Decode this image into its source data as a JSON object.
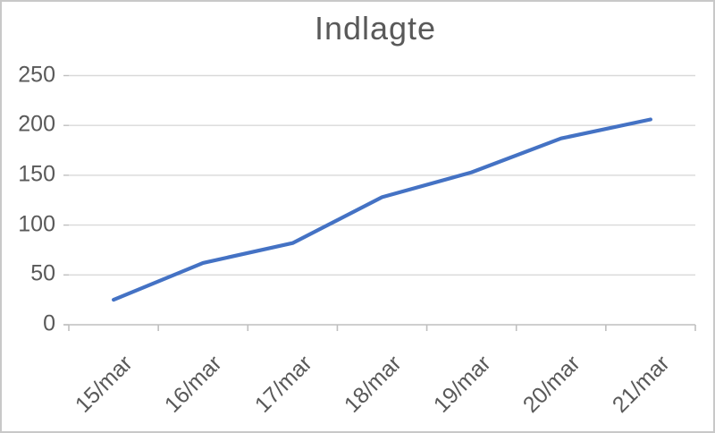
{
  "title": "Indlagte",
  "chart_data": {
    "type": "line",
    "title": "Indlagte",
    "categories": [
      "15/mar",
      "16/mar",
      "17/mar",
      "18/mar",
      "19/mar",
      "20/mar",
      "21/mar"
    ],
    "values": [
      25,
      62,
      82,
      128,
      153,
      187,
      206
    ],
    "series_name": "Indlagte",
    "xlabel": "",
    "ylabel": "",
    "ylim": [
      0,
      250
    ],
    "yticks": [
      0,
      50,
      100,
      150,
      200,
      250
    ],
    "grid": "horizontal",
    "legend_position": "none",
    "x_label_rotation_deg": 45,
    "line_color": "#4472C4"
  },
  "colors": {
    "line": "#4472C4",
    "text": "#595959",
    "gridline": "#d9d9d9",
    "axis": "#bfbfbf",
    "frame": "#c8c8c8",
    "background": "#ffffff"
  }
}
